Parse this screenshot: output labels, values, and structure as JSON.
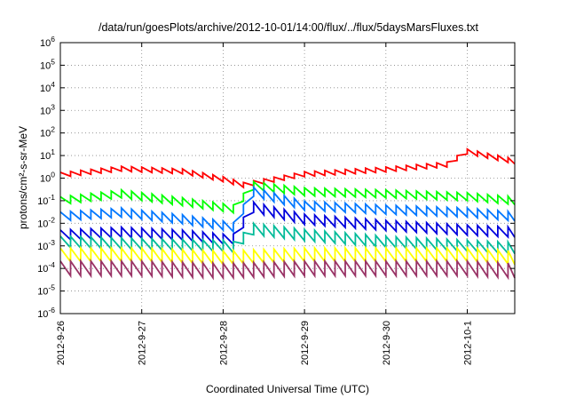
{
  "chart_data": {
    "type": "line",
    "title": "/data/run/goesPlots/archive/2012-10-01/14:00/flux/../flux/5daysMarsFluxes.txt",
    "xlabel": "Coordinated Universal Time (UTC)",
    "ylabel": "protons/cm²-s-sr-MeV",
    "yscale": "log",
    "ylim": [
      1e-06,
      1000000.0
    ],
    "xlim": [
      "2012-09-26",
      "2012-10-01T14:00"
    ],
    "x_ticks": [
      "2012-9-26",
      "2012-9-27",
      "2012-9-28",
      "2012-9-29",
      "2012-9-30",
      "2012-10-1"
    ],
    "y_ticks": [
      "10-6",
      "10-5",
      "10-4",
      "10-3",
      "10-2",
      "10-1",
      "100",
      "101",
      "102",
      "103",
      "104",
      "105",
      "106"
    ],
    "grid": true,
    "sawtooth_period_hours": 3,
    "series": [
      {
        "color": "#ff0000",
        "x": [
          "2012-09-26T00:00",
          "2012-09-26T18:00",
          "2012-09-27T12:00",
          "2012-09-28T00:00",
          "2012-09-28T06:00",
          "2012-09-29T00:00",
          "2012-09-30T00:00",
          "2012-09-30T18:00",
          "2012-10-01T00:00",
          "2012-10-01T14:00"
        ],
        "y": [
          1.4,
          2.6,
          2.0,
          0.9,
          0.5,
          1.5,
          2.4,
          4.0,
          15,
          5.5
        ]
      },
      {
        "color": "#00ff00",
        "x": [
          "2012-09-26T00:00",
          "2012-09-26T18:00",
          "2012-09-27T12:00",
          "2012-09-28T00:00",
          "2012-09-28T05:00",
          "2012-09-28T07:00",
          "2012-09-29T00:00",
          "2012-09-30T00:00",
          "2012-10-01T00:00",
          "2012-10-01T14:00"
        ],
        "y": [
          0.1,
          0.2,
          0.09,
          0.05,
          0.04,
          0.5,
          0.25,
          0.2,
          0.15,
          0.1
        ]
      },
      {
        "color": "#0077ff",
        "x": [
          "2012-09-26T00:00",
          "2012-09-26T18:00",
          "2012-09-27T12:00",
          "2012-09-28T00:00",
          "2012-09-28T05:00",
          "2012-09-28T07:00",
          "2012-09-29T00:00",
          "2012-09-30T00:00",
          "2012-10-01T00:00",
          "2012-10-01T14:00"
        ],
        "y": [
          0.02,
          0.03,
          0.015,
          0.008,
          0.006,
          0.3,
          0.06,
          0.04,
          0.03,
          0.02
        ]
      },
      {
        "color": "#0000dd",
        "x": [
          "2012-09-26T00:00",
          "2012-09-26T18:00",
          "2012-09-27T12:00",
          "2012-09-28T00:00",
          "2012-09-28T05:00",
          "2012-09-28T07:00",
          "2012-09-29T00:00",
          "2012-09-30T00:00",
          "2012-10-01T00:00",
          "2012-10-01T14:00"
        ],
        "y": [
          0.003,
          0.004,
          0.003,
          0.002,
          0.002,
          0.06,
          0.015,
          0.008,
          0.005,
          0.004
        ]
      },
      {
        "color": "#00bb99",
        "x": [
          "2012-09-26T00:00",
          "2012-09-27T00:00",
          "2012-09-28T00:00",
          "2012-09-28T05:00",
          "2012-09-28T07:00",
          "2012-09-29T00:00",
          "2012-09-30T00:00",
          "2012-10-01T00:00",
          "2012-10-01T14:00"
        ],
        "y": [
          0.0015,
          0.0012,
          0.001,
          0.0008,
          0.006,
          0.003,
          0.0015,
          0.001,
          0.0008
        ]
      },
      {
        "color": "#ffff00",
        "x": [
          "2012-09-26T00:00",
          "2012-09-27T00:00",
          "2012-09-28T00:00",
          "2012-09-29T00:00",
          "2012-09-30T00:00",
          "2012-10-01T00:00",
          "2012-10-01T14:00"
        ],
        "y": [
          0.0004,
          0.0004,
          0.0003,
          0.0004,
          0.0004,
          0.0004,
          0.0003
        ]
      },
      {
        "color": "#993366",
        "x": [
          "2012-09-26T00:00",
          "2012-09-27T00:00",
          "2012-09-28T00:00",
          "2012-09-29T00:00",
          "2012-09-30T00:00",
          "2012-10-01T00:00",
          "2012-10-01T14:00"
        ],
        "y": [
          0.0001,
          0.0001,
          8e-05,
          0.0001,
          0.0001,
          0.0001,
          8e-05
        ]
      }
    ]
  }
}
